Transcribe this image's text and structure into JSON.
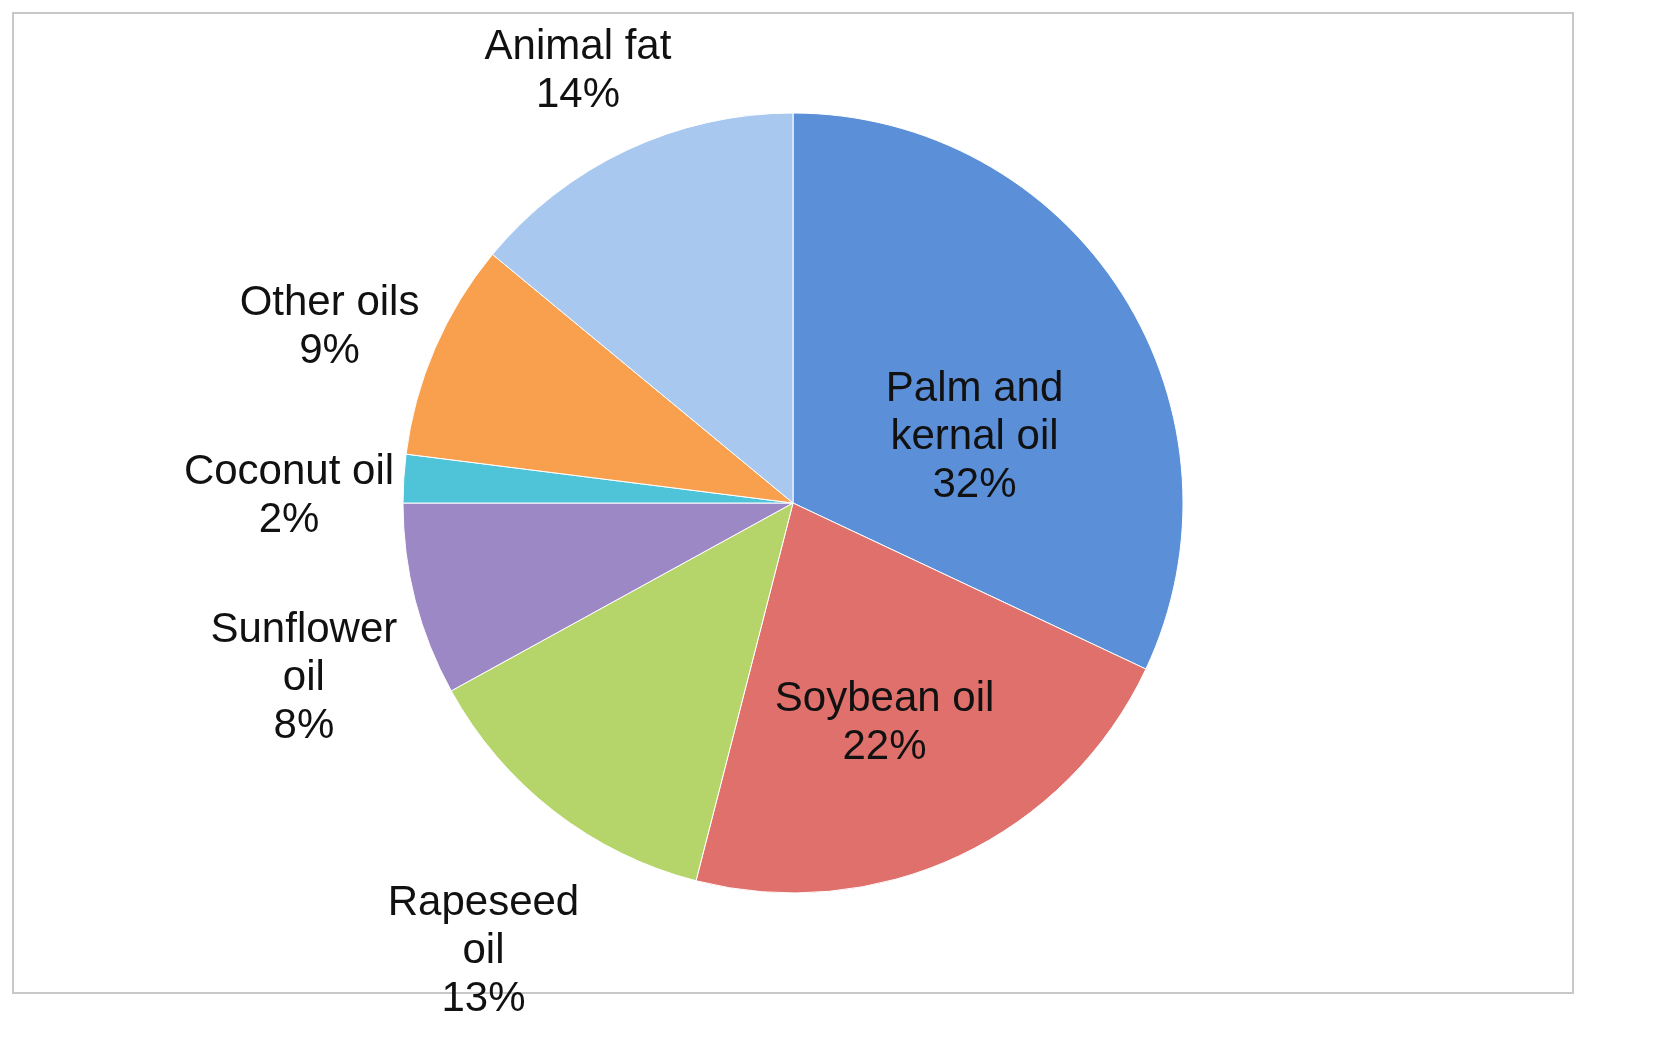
{
  "chart_data": {
    "type": "pie",
    "categories": [
      "Palm and kernal oil",
      "Soybean oil",
      "Rapeseed oil",
      "Sunflower oil",
      "Coconut oil",
      "Other oils",
      "Animal fat"
    ],
    "values": [
      32,
      22,
      13,
      8,
      2,
      9,
      14
    ],
    "value_labels": [
      "32%",
      "22%",
      "13%",
      "8%",
      "2%",
      "9%",
      "14%"
    ],
    "colors": [
      "#5b8fd8",
      "#e0706b",
      "#b5d46a",
      "#9c88c4",
      "#4fc3d8",
      "#f8a04e",
      "#a9c8f0"
    ],
    "legend": false
  }
}
